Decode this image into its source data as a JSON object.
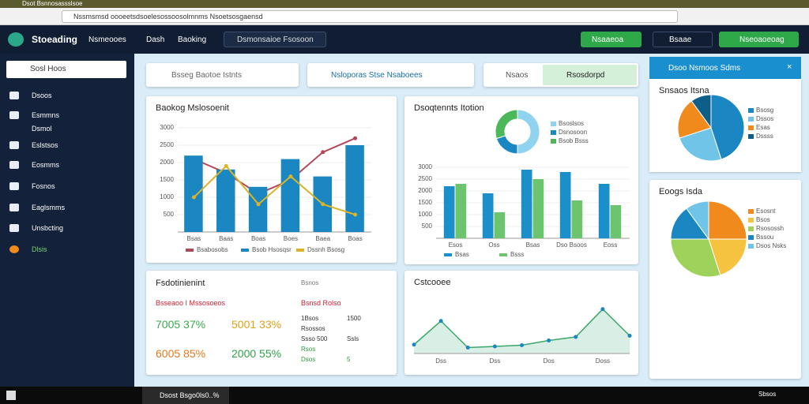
{
  "browser": {
    "tab": "Dsot Bsnnosassslsoe",
    "url": "Nssmsmsd oooeetsdsoelesossoosolmnms Nsoetsosgaensd"
  },
  "header": {
    "logo": "Stoeading",
    "nav": [
      "Nsmeooes",
      "Dash",
      "Baoking"
    ],
    "search": "Dsmonsaioe Fsosoon",
    "buttons": [
      "Nsaaeoa",
      "Bsaae",
      "Nseoaoeoag"
    ]
  },
  "sidebar": {
    "search": "Sosl Hoos",
    "items": [
      "Dsoos",
      "Esmmns",
      "Dsmol",
      "Eslstsos",
      "Eosmms",
      "Fosnos",
      "Eaglsmms",
      "Unsbcting",
      "Dlsis"
    ]
  },
  "filters": [
    "Bsseg Baotoe Istnts",
    "Nsloporas Stse Nsaboees",
    "Nsaos",
    "Rsosdorpd"
  ],
  "panel": {
    "title": "Dsoo Nsmoos Sdms"
  },
  "kpi": {
    "title": "Fsdotinienint",
    "subtitle": "Bsseaoo I Mssosoeos",
    "link": "Bsnos",
    "values": [
      "7005 37%",
      "5001 33%",
      "6005 85%",
      "2000 55%"
    ],
    "list_title": "Bsnsd Rolso",
    "list": [
      [
        "1Bsos",
        "1500"
      ],
      [
        "Rsossos",
        ""
      ],
      [
        "Ssso 500",
        "Ssls"
      ],
      [
        "Rsos",
        ""
      ],
      [
        "Dsos",
        "5"
      ]
    ]
  },
  "taskbar": {
    "app": "Dsost Bsgo0ls0..%",
    "clock": "Sbsos"
  },
  "chart_data": [
    {
      "type": "bar",
      "title": "Baokog Mslosoenit",
      "categories": [
        "Bsas",
        "Baas",
        "Boas",
        "Boes",
        "Baea",
        "Boas"
      ],
      "ylim": [
        0,
        3000
      ],
      "yticks": [
        500,
        1000,
        1500,
        2000,
        2500,
        3000
      ],
      "series": [
        {
          "name": "Bsabosobs",
          "color": "#b0485a",
          "type": "line",
          "values": [
            2100,
            1700,
            1100,
            1500,
            2300,
            2700
          ]
        },
        {
          "name": "Bsob Hsosqsr",
          "color": "#1a86c2",
          "type": "bar",
          "values": [
            2200,
            1800,
            1300,
            2100,
            1600,
            2500
          ]
        },
        {
          "name": "Dssnh Bsosg",
          "color": "#d9b42a",
          "type": "line",
          "values": [
            1000,
            1900,
            800,
            1600,
            800,
            500
          ]
        }
      ]
    },
    {
      "type": "donut",
      "categories": [
        "Bsoslsos",
        "Dsnosoon",
        "Bsob Bsss"
      ],
      "values": [
        50,
        20,
        30
      ],
      "colors": [
        "#8fd3ef",
        "#1a86c2",
        "#4cb85a"
      ]
    },
    {
      "type": "bar",
      "title": "Dsoqtennts Itotion",
      "categories": [
        "Esos",
        "Oss",
        "Bsas",
        "Dso Bsoos",
        "Eoss"
      ],
      "ylim": [
        0,
        3000
      ],
      "yticks": [
        500,
        1000,
        1500,
        2000,
        2500,
        3000
      ],
      "series": [
        {
          "name": "Bsas",
          "color": "#1a8fc9",
          "type": "bar",
          "values": [
            2200,
            1900,
            2900,
            2800,
            2300
          ]
        },
        {
          "name": "Bsss",
          "color": "#6cc46e",
          "type": "bar",
          "values": [
            2300,
            1100,
            2500,
            1600,
            1400
          ]
        }
      ]
    },
    {
      "type": "line",
      "title": "Cstcooee",
      "categories": [
        null,
        "Dss",
        null,
        "Dss",
        null,
        "Dos",
        null,
        "Doss",
        null
      ],
      "ylim": [
        0,
        100
      ],
      "values": [
        15,
        55,
        10,
        12,
        14,
        22,
        28,
        75,
        30
      ],
      "color": "#3aa86a"
    },
    {
      "type": "pie",
      "title": "Snsaos Itsna",
      "categories": [
        "Bsosg",
        "Dssos",
        "Esas",
        "Dssss"
      ],
      "values": [
        45,
        25,
        20,
        10
      ],
      "colors": [
        "#1a86c2",
        "#6fc4e8",
        "#f08a1c",
        "#0d5f8a"
      ]
    },
    {
      "type": "pie",
      "title": "Eoogs Isda",
      "categories": [
        "Esosnt",
        "Bsos",
        "Rsosossh",
        "Bssou",
        "Dsos Nsks"
      ],
      "values": [
        25,
        20,
        30,
        15,
        10
      ],
      "colors": [
        "#f08a1c",
        "#f6c341",
        "#9fd25a",
        "#1a86c2",
        "#6fc4e8"
      ]
    }
  ]
}
